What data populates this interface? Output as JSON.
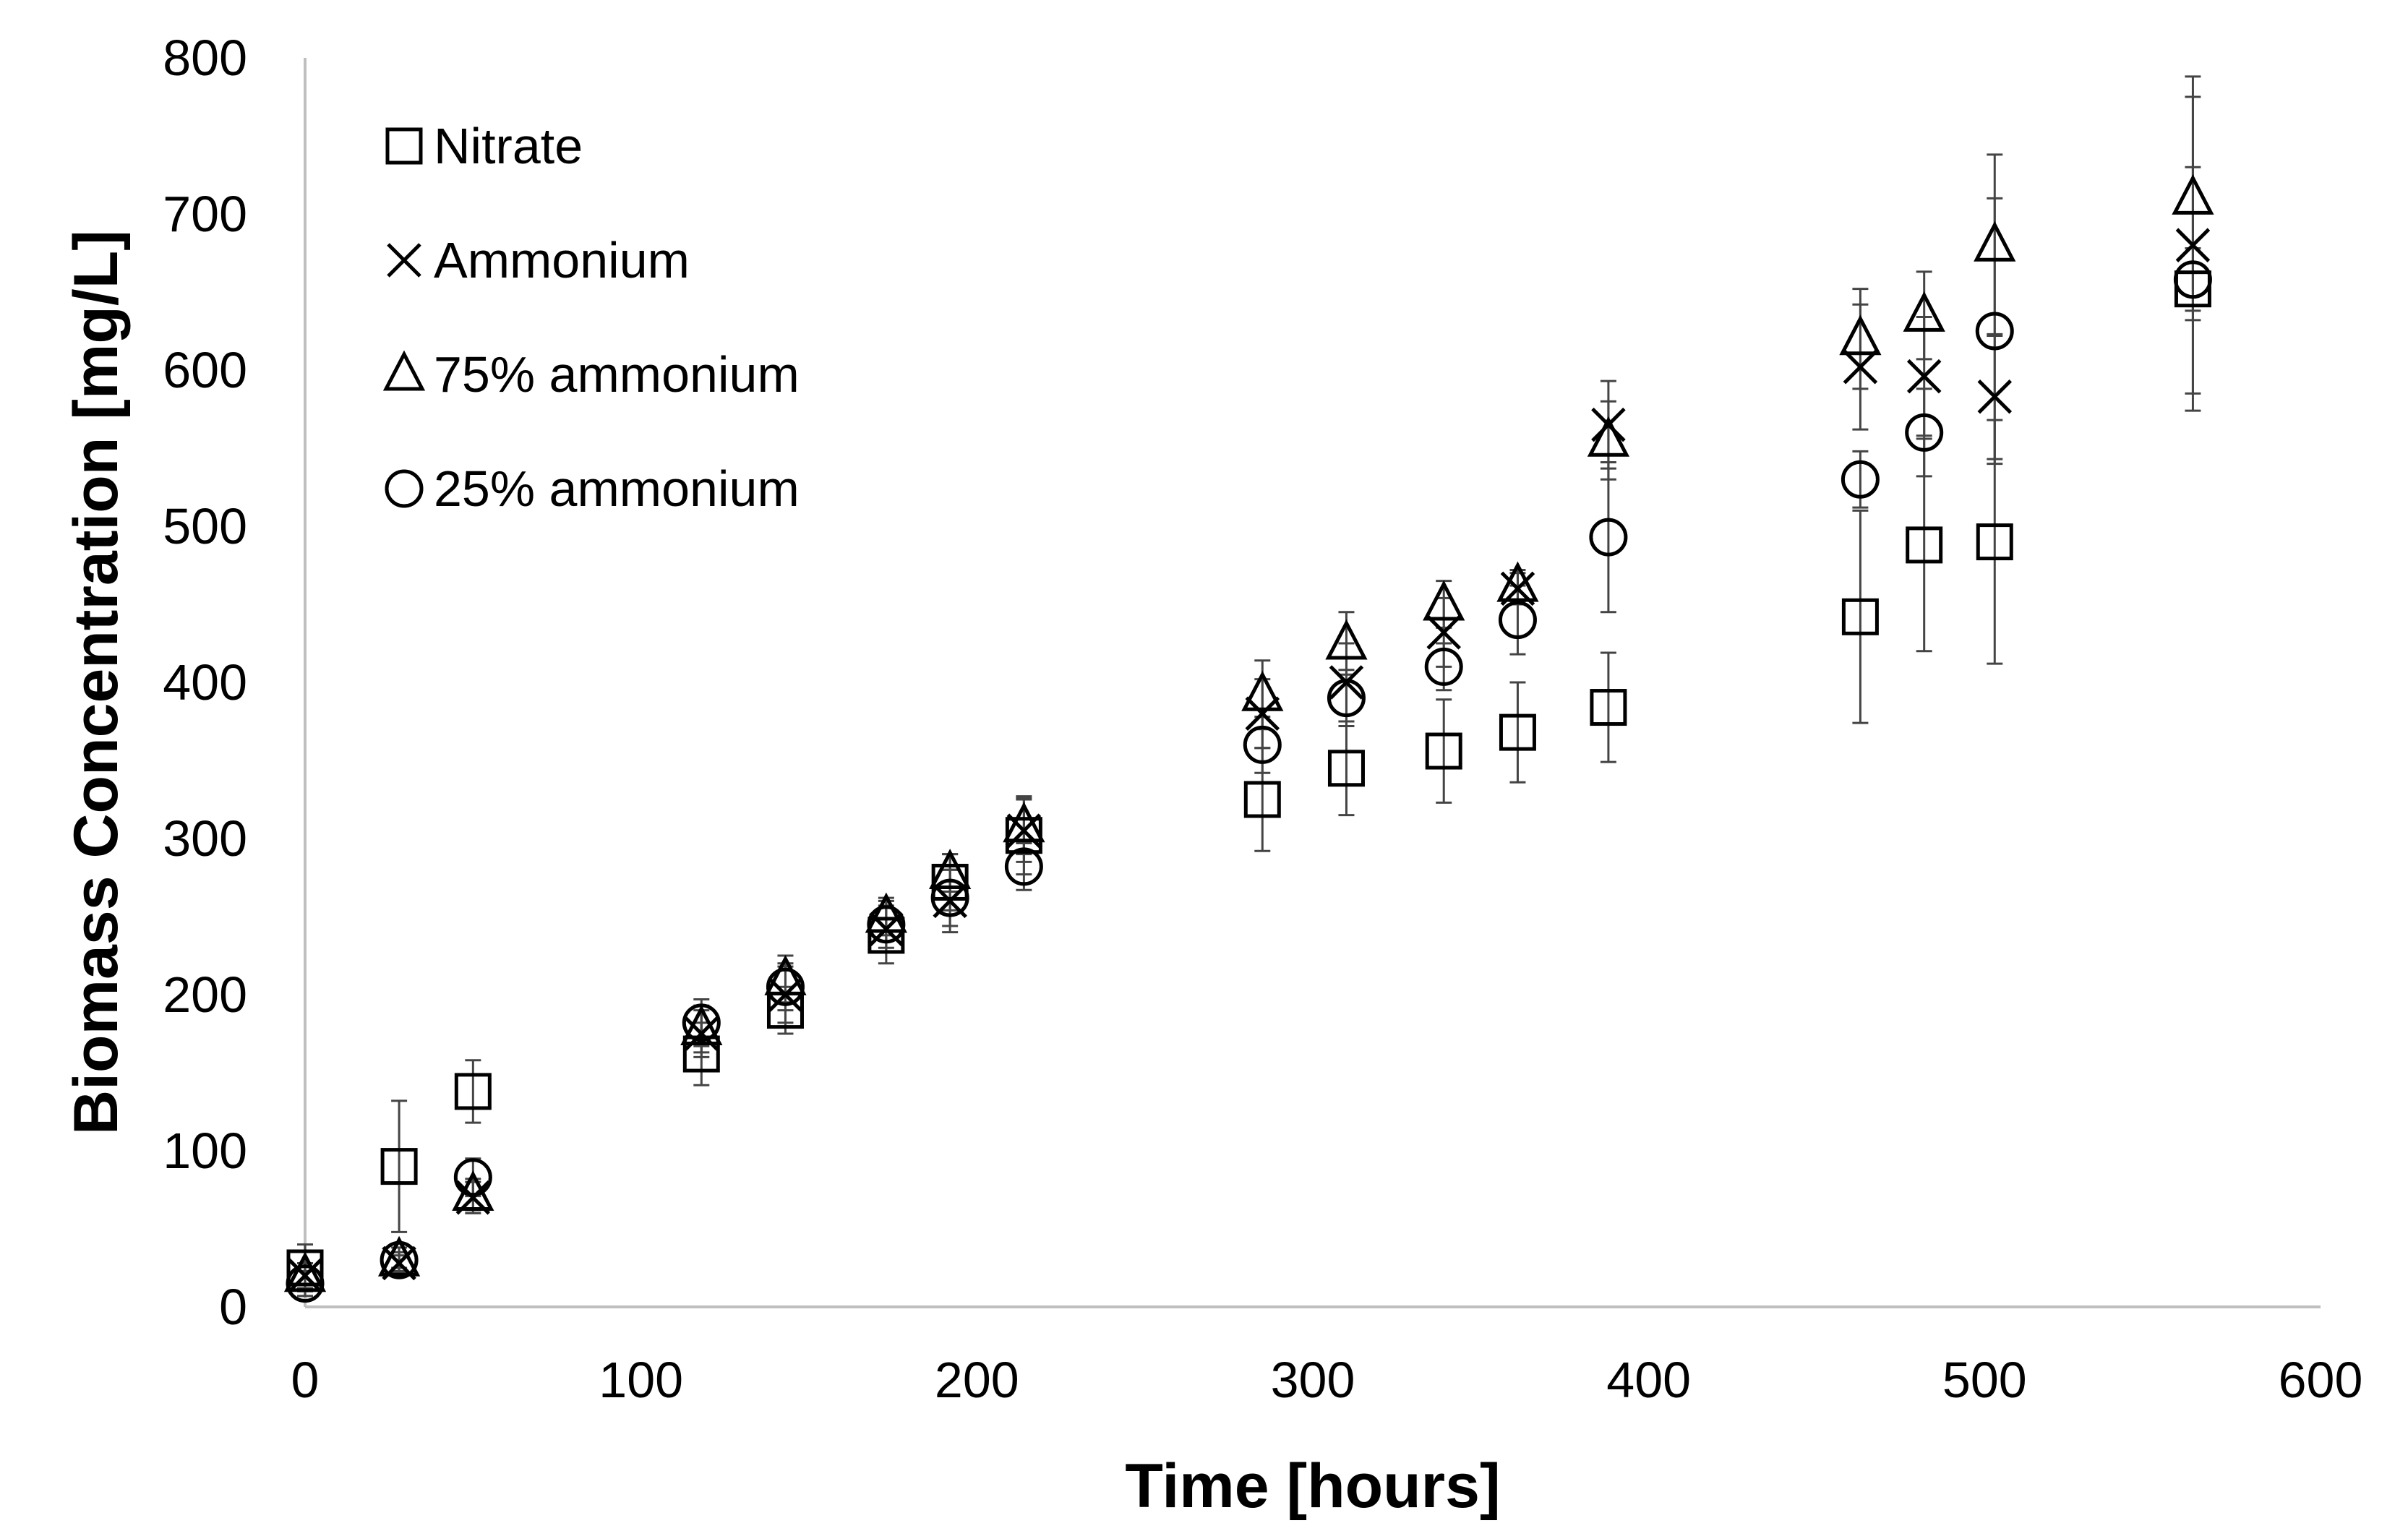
{
  "chart_data": {
    "type": "scatter",
    "title": "",
    "xlabel": "Time [hours]",
    "ylabel": "Biomass Concentration [mg/L]",
    "xlim": [
      0,
      600
    ],
    "ylim": [
      0,
      800
    ],
    "xticks": [
      0,
      100,
      200,
      300,
      400,
      500,
      600
    ],
    "yticks": [
      0,
      100,
      200,
      300,
      400,
      500,
      600,
      700,
      800
    ],
    "grid": false,
    "legend_position": "top-left",
    "series": [
      {
        "name": "Nitrate",
        "marker": "square",
        "points": [
          {
            "x": 0,
            "y": 25,
            "err": 15
          },
          {
            "x": 28,
            "y": 90,
            "err": 42
          },
          {
            "x": 50,
            "y": 138,
            "err": 20
          },
          {
            "x": 118,
            "y": 162,
            "err": 20
          },
          {
            "x": 143,
            "y": 190,
            "err": 15
          },
          {
            "x": 173,
            "y": 238,
            "err": 18
          },
          {
            "x": 192,
            "y": 272,
            "err": 18
          },
          {
            "x": 214,
            "y": 302,
            "err": 25
          },
          {
            "x": 285,
            "y": 325,
            "err": 33
          },
          {
            "x": 310,
            "y": 345,
            "err": 30
          },
          {
            "x": 339,
            "y": 356,
            "err": 33
          },
          {
            "x": 361,
            "y": 368,
            "err": 32
          },
          {
            "x": 388,
            "y": 384,
            "err": 35
          },
          {
            "x": 463,
            "y": 442,
            "err": 68
          },
          {
            "x": 482,
            "y": 488,
            "err": 68
          },
          {
            "x": 503,
            "y": 490,
            "err": 78
          },
          {
            "x": 562,
            "y": 652,
            "err": 78
          }
        ]
      },
      {
        "name": "Ammonium",
        "marker": "cross",
        "points": [
          {
            "x": 0,
            "y": 20,
            "err": 8
          },
          {
            "x": 28,
            "y": 28,
            "err": 5
          },
          {
            "x": 50,
            "y": 70,
            "err": 10
          },
          {
            "x": 118,
            "y": 175,
            "err": 15
          },
          {
            "x": 143,
            "y": 200,
            "err": 18
          },
          {
            "x": 173,
            "y": 242,
            "err": 15
          },
          {
            "x": 192,
            "y": 260,
            "err": 20
          },
          {
            "x": 214,
            "y": 305,
            "err": 20
          },
          {
            "x": 285,
            "y": 380,
            "err": 22
          },
          {
            "x": 310,
            "y": 400,
            "err": 25
          },
          {
            "x": 339,
            "y": 432,
            "err": 22
          },
          {
            "x": 361,
            "y": 460,
            "err": 10
          },
          {
            "x": 388,
            "y": 565,
            "err": 28
          },
          {
            "x": 463,
            "y": 602,
            "err": 40
          },
          {
            "x": 482,
            "y": 596,
            "err": 38
          },
          {
            "x": 503,
            "y": 583,
            "err": 40
          },
          {
            "x": 562,
            "y": 680,
            "err": 95
          }
        ]
      },
      {
        "name": "75% ammonium",
        "marker": "triangle",
        "points": [
          {
            "x": 0,
            "y": 20,
            "err": 8
          },
          {
            "x": 28,
            "y": 30,
            "err": 5
          },
          {
            "x": 50,
            "y": 72,
            "err": 10
          },
          {
            "x": 118,
            "y": 178,
            "err": 15
          },
          {
            "x": 143,
            "y": 210,
            "err": 15
          },
          {
            "x": 173,
            "y": 250,
            "err": 12
          },
          {
            "x": 192,
            "y": 278,
            "err": 12
          },
          {
            "x": 214,
            "y": 308,
            "err": 18
          },
          {
            "x": 285,
            "y": 392,
            "err": 22
          },
          {
            "x": 310,
            "y": 425,
            "err": 20
          },
          {
            "x": 339,
            "y": 450,
            "err": 15
          },
          {
            "x": 361,
            "y": 462,
            "err": 10
          },
          {
            "x": 388,
            "y": 555,
            "err": 25
          },
          {
            "x": 463,
            "y": 620,
            "err": 32
          },
          {
            "x": 482,
            "y": 635,
            "err": 28
          },
          {
            "x": 503,
            "y": 680,
            "err": 58
          },
          {
            "x": 562,
            "y": 710,
            "err": 78
          }
        ]
      },
      {
        "name": "25% ammonium",
        "marker": "circle",
        "points": [
          {
            "x": 0,
            "y": 15,
            "err": 8
          },
          {
            "x": 28,
            "y": 30,
            "err": 8
          },
          {
            "x": 50,
            "y": 83,
            "err": 12
          },
          {
            "x": 118,
            "y": 182,
            "err": 15
          },
          {
            "x": 143,
            "y": 205,
            "err": 15
          },
          {
            "x": 173,
            "y": 245,
            "err": 15
          },
          {
            "x": 192,
            "y": 262,
            "err": 18
          },
          {
            "x": 214,
            "y": 282,
            "err": 15
          },
          {
            "x": 285,
            "y": 360,
            "err": 18
          },
          {
            "x": 310,
            "y": 390,
            "err": 18
          },
          {
            "x": 339,
            "y": 410,
            "err": 15
          },
          {
            "x": 361,
            "y": 440,
            "err": 22
          },
          {
            "x": 388,
            "y": 493,
            "err": 48
          },
          {
            "x": 463,
            "y": 530,
            "err": 18
          },
          {
            "x": 482,
            "y": 560,
            "err": 28
          },
          {
            "x": 503,
            "y": 625,
            "err": 85
          },
          {
            "x": 562,
            "y": 658,
            "err": 20
          }
        ]
      }
    ]
  }
}
